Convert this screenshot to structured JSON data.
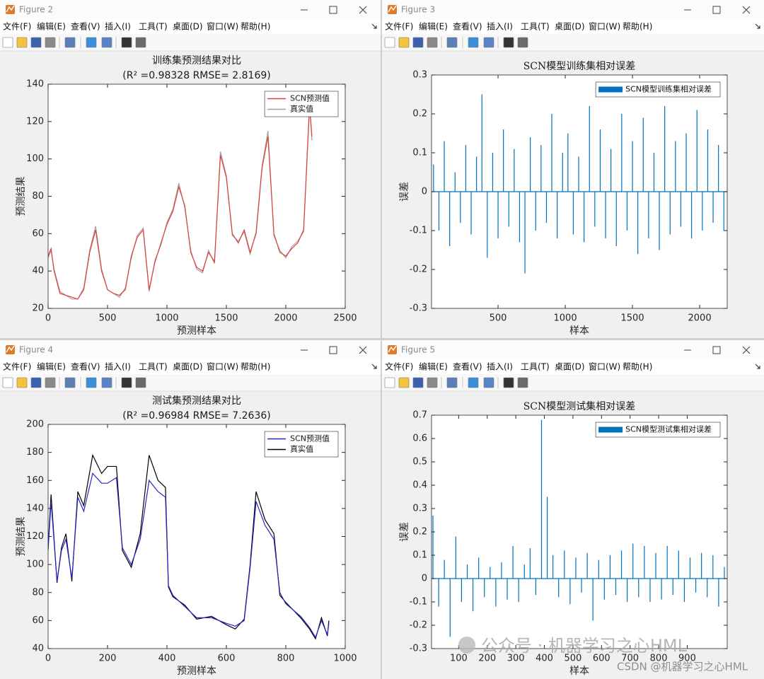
{
  "windows": [
    {
      "title": "Figure 2",
      "menu": [
        "文件(F)",
        "编辑(E)",
        "查看(V)",
        "插入(I)",
        "工具(T)",
        "桌面(D)",
        "窗口(W)",
        "帮助(H)"
      ]
    },
    {
      "title": "Figure 3",
      "menu": [
        "文件(F)",
        "编辑(E)",
        "查看(V)",
        "插入(I)",
        "工具(T)",
        "桌面(D)",
        "窗口(W)",
        "帮助(H)"
      ]
    },
    {
      "title": "Figure 4",
      "menu": [
        "文件(F)",
        "编辑(E)",
        "查看(V)",
        "插入(I)",
        "工具(T)",
        "桌面(D)",
        "窗口(W)",
        "帮助(H)"
      ]
    },
    {
      "title": "Figure 5",
      "menu": [
        "文件(F)",
        "编辑(E)",
        "查看(V)",
        "插入(I)",
        "工具(T)",
        "桌面(D)",
        "窗口(W)",
        "帮助(H)"
      ]
    }
  ],
  "watermarks": [
    "公众号 · 机器学习之心HML",
    "CSDN @机器学习之心HML"
  ],
  "chart_data": [
    {
      "type": "line",
      "title": "训练集预测结果对比",
      "subtitle": "(R² =0.98328 RMSE= 2.8169)",
      "x_label": "预测样本",
      "y_label": "预测结果",
      "xlim": [
        0,
        2500
      ],
      "xticks": [
        0,
        500,
        1000,
        1500,
        2000,
        2500
      ],
      "ylim": [
        20,
        140
      ],
      "yticks": [
        20,
        40,
        60,
        80,
        100,
        120,
        140
      ],
      "legend": "northeast",
      "x": [
        0,
        25,
        50,
        100,
        150,
        200,
        250,
        300,
        350,
        400,
        450,
        500,
        550,
        600,
        650,
        700,
        750,
        800,
        850,
        900,
        950,
        1000,
        1050,
        1100,
        1150,
        1200,
        1250,
        1300,
        1350,
        1400,
        1450,
        1500,
        1550,
        1600,
        1650,
        1700,
        1750,
        1800,
        1850,
        1900,
        1950,
        2000,
        2050,
        2100,
        2150,
        2200,
        2220
      ],
      "series": [
        {
          "name": "SCN预测值",
          "color": "#d9413c",
          "values": [
            48,
            52,
            40,
            28,
            27,
            26,
            25,
            30,
            50,
            62,
            40,
            30,
            28,
            27,
            30,
            48,
            58,
            62,
            30,
            45,
            55,
            65,
            72,
            85,
            75,
            50,
            42,
            40,
            50,
            45,
            102,
            90,
            60,
            55,
            62,
            50,
            60,
            95,
            112,
            60,
            50,
            48,
            52,
            55,
            62,
            128,
            112
          ]
        },
        {
          "name": "真实值",
          "color": "#a8a0a0",
          "values": [
            47,
            51,
            41,
            29,
            27,
            25,
            25,
            31,
            51,
            64,
            41,
            30,
            28,
            26,
            31,
            47,
            59,
            63,
            29,
            46,
            54,
            66,
            73,
            87,
            74,
            51,
            41,
            39,
            51,
            44,
            104,
            91,
            59,
            56,
            61,
            49,
            61,
            96,
            115,
            59,
            51,
            47,
            53,
            56,
            61,
            130,
            110
          ]
        }
      ]
    },
    {
      "type": "bar",
      "title": "SCN模型训练集相对误差",
      "x_label": "样本",
      "y_label": "误差",
      "xlim": [
        5,
        2205
      ],
      "xticks": [
        500,
        1000,
        1500,
        2000
      ],
      "ylim": [
        -0.3,
        0.3
      ],
      "yticks": [
        -0.3,
        -0.2,
        -0.1,
        0,
        0.1,
        0.2,
        0.3
      ],
      "legend": "northeast",
      "x": [
        20,
        60,
        100,
        140,
        180,
        220,
        260,
        300,
        340,
        380,
        420,
        460,
        500,
        540,
        580,
        620,
        660,
        700,
        740,
        780,
        820,
        860,
        900,
        940,
        980,
        1020,
        1060,
        1100,
        1140,
        1180,
        1220,
        1260,
        1300,
        1340,
        1380,
        1420,
        1460,
        1500,
        1540,
        1580,
        1620,
        1660,
        1700,
        1740,
        1780,
        1820,
        1860,
        1900,
        1940,
        1980,
        2020,
        2060,
        2100,
        2140,
        2180
      ],
      "series": [
        {
          "name": "SCN模型训练集相对误差",
          "color": "#0072bd",
          "values": [
            0.07,
            -0.1,
            0.13,
            -0.14,
            0.05,
            -0.08,
            0.12,
            -0.11,
            0.09,
            0.25,
            -0.17,
            0.1,
            -0.12,
            0.16,
            -0.09,
            0.11,
            -0.13,
            -0.21,
            0.14,
            -0.1,
            0.12,
            -0.08,
            0.2,
            -0.12,
            0.1,
            0.15,
            -0.11,
            0.09,
            -0.13,
            0.22,
            -0.09,
            0.16,
            -0.12,
            0.11,
            -0.14,
            0.2,
            -0.1,
            0.13,
            -0.16,
            0.19,
            -0.12,
            0.1,
            -0.15,
            0.22,
            -0.11,
            0.13,
            -0.09,
            0.15,
            -0.12,
            0.21,
            -0.1,
            0.16,
            -0.08,
            0.12,
            -0.1
          ]
        }
      ]
    },
    {
      "type": "line",
      "title": "测试集预测结果对比",
      "subtitle": "(R² =0.96984 RMSE= 7.2636)",
      "x_label": "预测样本",
      "y_label": "预测结果",
      "xlim": [
        0,
        1000
      ],
      "xticks": [
        0,
        200,
        400,
        600,
        800,
        1000
      ],
      "ylim": [
        40,
        200
      ],
      "yticks": [
        40,
        60,
        80,
        100,
        120,
        140,
        160,
        180,
        200
      ],
      "legend": "northeast",
      "x": [
        0,
        10,
        30,
        45,
        60,
        80,
        100,
        120,
        150,
        180,
        200,
        230,
        250,
        280,
        310,
        340,
        370,
        395,
        405,
        420,
        460,
        500,
        550,
        600,
        630,
        660,
        680,
        700,
        730,
        760,
        780,
        800,
        850,
        880,
        900,
        920,
        940,
        945
      ],
      "series": [
        {
          "name": "SCN预测值",
          "color": "#2626c8",
          "values": [
            110,
            145,
            88,
            110,
            118,
            90,
            148,
            138,
            165,
            158,
            158,
            162,
            112,
            100,
            118,
            160,
            152,
            148,
            85,
            78,
            70,
            62,
            62,
            58,
            56,
            60,
            98,
            145,
            128,
            118,
            80,
            72,
            63,
            55,
            48,
            60,
            50,
            58
          ]
        },
        {
          "name": "真实值",
          "color": "#000000",
          "values": [
            112,
            150,
            87,
            112,
            122,
            88,
            152,
            142,
            178,
            165,
            170,
            170,
            110,
            98,
            122,
            178,
            160,
            155,
            84,
            77,
            71,
            61,
            63,
            57,
            54,
            61,
            100,
            152,
            132,
            122,
            78,
            73,
            62,
            54,
            47,
            62,
            49,
            60
          ]
        }
      ]
    },
    {
      "type": "bar",
      "title": "SCN模型测试集相对误差",
      "x_label": "样本",
      "y_label": "误差",
      "xlim": [
        5,
        1040
      ],
      "xticks": [
        100,
        200,
        300,
        400,
        500,
        600,
        700,
        800,
        900
      ],
      "ylim": [
        -0.3,
        0.7
      ],
      "yticks": [
        -0.3,
        -0.2,
        -0.1,
        0,
        0.1,
        0.2,
        0.3,
        0.4,
        0.5,
        0.6,
        0.7
      ],
      "legend": "northeast",
      "x": [
        10,
        30,
        50,
        70,
        90,
        110,
        130,
        150,
        170,
        190,
        210,
        230,
        250,
        270,
        290,
        310,
        330,
        350,
        370,
        390,
        410,
        430,
        450,
        470,
        490,
        510,
        530,
        550,
        570,
        590,
        610,
        630,
        650,
        670,
        690,
        710,
        730,
        750,
        770,
        790,
        810,
        830,
        850,
        870,
        890,
        910,
        930,
        950,
        970,
        990,
        1010,
        1030
      ],
      "series": [
        {
          "name": "SCN模型测试集相对误差",
          "color": "#0072bd",
          "values": [
            0.27,
            -0.12,
            0.08,
            -0.25,
            0.18,
            -0.1,
            0.06,
            -0.14,
            0.09,
            -0.08,
            0.05,
            -0.12,
            0.07,
            -0.09,
            0.14,
            -0.1,
            0.06,
            0.13,
            -0.07,
            0.68,
            0.35,
            0.1,
            -0.08,
            0.12,
            -0.11,
            0.09,
            -0.06,
            0.11,
            -0.18,
            0.08,
            -0.09,
            0.1,
            -0.07,
            0.12,
            -0.1,
            0.15,
            -0.08,
            0.14,
            -0.1,
            0.11,
            -0.09,
            0.14,
            -0.07,
            0.12,
            -0.1,
            0.09,
            -0.06,
            0.11,
            -0.08,
            0.1,
            -0.12,
            0.05
          ]
        }
      ]
    }
  ]
}
